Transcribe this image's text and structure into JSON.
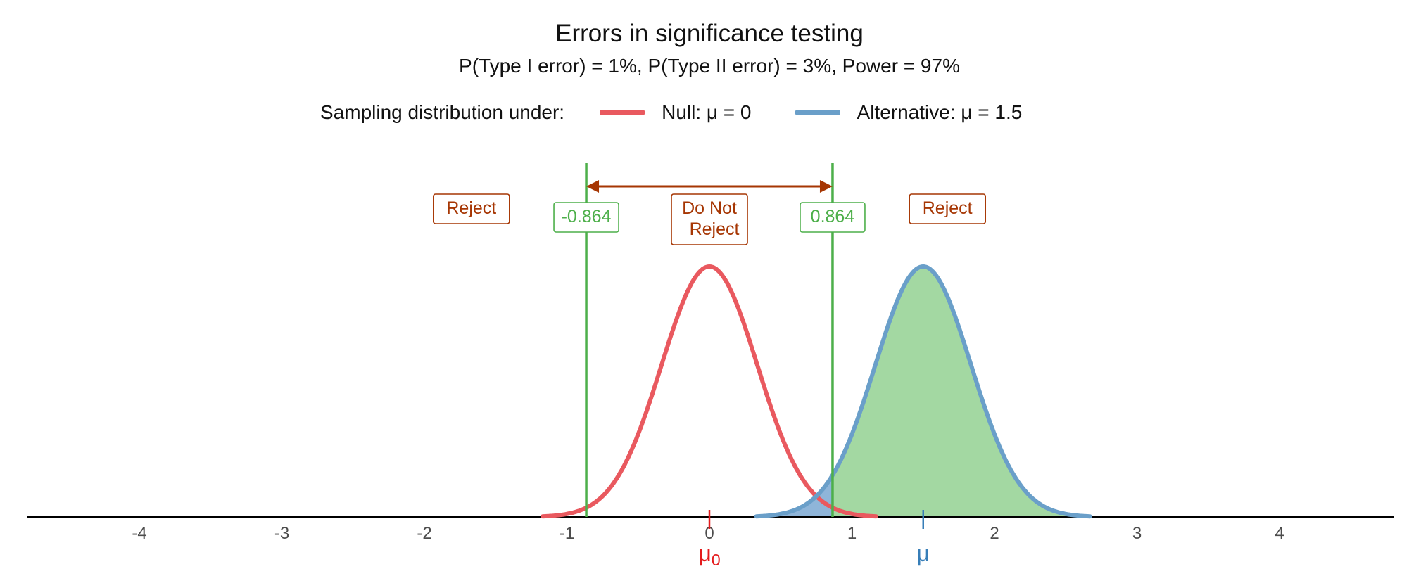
{
  "chart_data": {
    "type": "area",
    "title": "Errors in significance testing",
    "subtitle": "P(Type I error) = 1%, P(Type II error) = 3%, Power = 97%",
    "xlabel": "",
    "ylabel": "",
    "xlim": [
      -4.8,
      4.8
    ],
    "x_ticks": [
      -4,
      -3,
      -2,
      -1,
      0,
      1,
      2,
      3,
      4
    ],
    "x_tick_labels": [
      "-4",
      "-3",
      "-2",
      "-1",
      "0",
      "1",
      "2",
      "3",
      "4"
    ],
    "grid": false,
    "legend": {
      "title": "Sampling distribution under:",
      "position": "top",
      "entries": [
        "Null: μ = 0",
        "Alternative: μ = 1.5"
      ]
    },
    "series": [
      {
        "name": "Null: μ = 0",
        "distribution": "normal",
        "mean": 0,
        "sd": 0.336,
        "x_range": [
          -1.17,
          1.17
        ],
        "color": "#e41a1c"
      },
      {
        "name": "Alternative: μ = 1.5",
        "distribution": "normal",
        "mean": 1.5,
        "sd": 0.336,
        "x_range": [
          0.33,
          2.67
        ],
        "color": "#377eb8"
      }
    ],
    "critical_values": [
      -0.864,
      0.864
    ],
    "critical_value_labels": [
      "-0.864",
      "0.864"
    ],
    "shaded_regions": [
      {
        "meaning": "power",
        "curve": "Alternative: μ = 1.5",
        "from": 0.864,
        "to": 2.67,
        "color": "#4daf4a"
      },
      {
        "meaning": "type II error",
        "curve": "Alternative: μ = 1.5",
        "from": 0.33,
        "to": 0.864,
        "color": "#377eb8"
      }
    ],
    "region_labels": [
      {
        "text": "Reject",
        "x": -1.67
      },
      {
        "text": "Do Not Reject",
        "x": 0
      },
      {
        "text": "Reject",
        "x": 1.67
      }
    ],
    "mean_markers": [
      {
        "x": 0,
        "label_base": "μ",
        "label_sub": "0",
        "color": "#e41a1c"
      },
      {
        "x": 1.5,
        "label_base": "μ",
        "label_sub": "",
        "color": "#377eb8"
      }
    ]
  },
  "colors": {
    "null_curve": "#e9595f",
    "alt_curve": "#6a9fc9",
    "critical_line": "#4daf4a",
    "power_fill": "#a3d8a2",
    "type2_fill": "#8fb5d9",
    "annotation": "#a63603",
    "axis": "#000000",
    "tick_text": "#4d4d4d"
  }
}
